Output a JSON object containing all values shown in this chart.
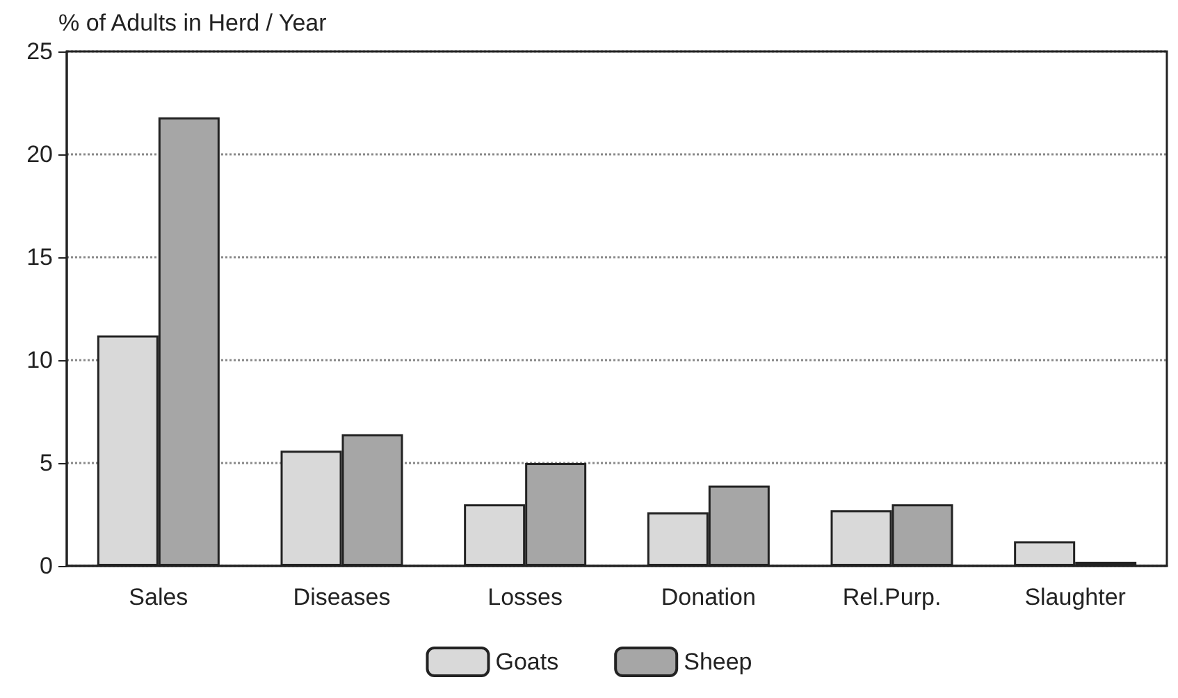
{
  "chart_data": {
    "type": "bar",
    "ylabel": "% of Adults in Herd / Year",
    "categories": [
      "Sales",
      "Diseases",
      "Losses",
      "Donation",
      "Rel.Purp.",
      "Slaughter"
    ],
    "series": [
      {
        "name": "Goats",
        "color": "#d9d9d9",
        "values": [
          11.2,
          5.6,
          3.0,
          2.6,
          2.7,
          1.2
        ]
      },
      {
        "name": "Sheep",
        "color": "#a6a6a6",
        "values": [
          21.8,
          6.4,
          5.0,
          3.9,
          3.0,
          0.2
        ]
      }
    ],
    "ylim": [
      0,
      25
    ],
    "yticks": [
      0,
      5,
      10,
      15,
      20,
      25
    ],
    "grid": "y",
    "legend": "bottom"
  }
}
